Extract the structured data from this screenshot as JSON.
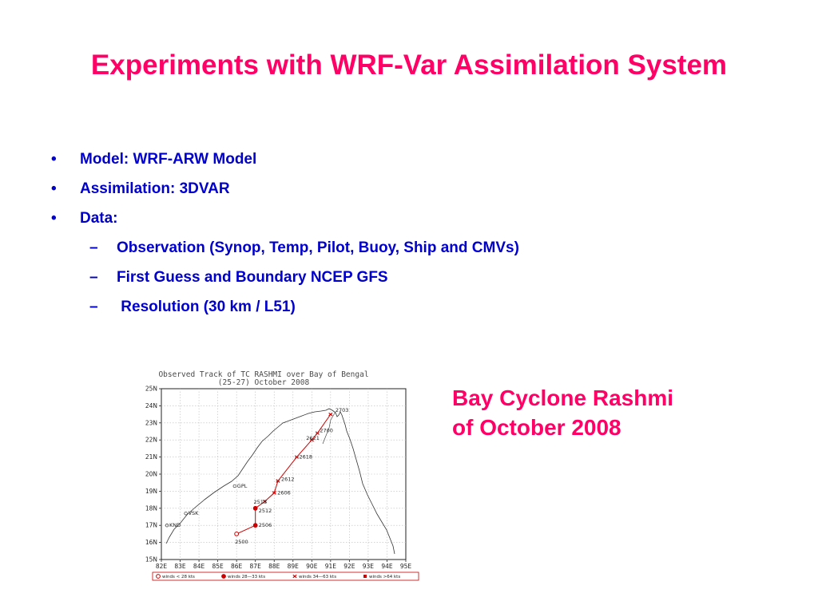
{
  "slide": {
    "title": "Experiments with WRF-Var Assimilation System",
    "bullets": [
      {
        "level": 1,
        "marker": "•",
        "text": "Model: WRF-ARW Model"
      },
      {
        "level": 1,
        "marker": "•",
        "text": "Assimilation: 3DVAR"
      },
      {
        "level": 1,
        "marker": "•",
        "text": "Data:"
      },
      {
        "level": 2,
        "marker": "–",
        "text": "Observation (Synop, Temp, Pilot, Buoy, Ship and CMVs)"
      },
      {
        "level": 2,
        "marker": "–",
        "text": "First Guess and Boundary NCEP GFS"
      },
      {
        "level": 2,
        "marker": "–",
        "text": " Resolution (30 km / L51)"
      }
    ],
    "caption": [
      "Bay Cyclone Rashmi",
      "of October 2008"
    ],
    "colors": {
      "title": "#ff0066",
      "bullets": "#0000cc",
      "track": "#cc0000"
    }
  },
  "map": {
    "title_lines": [
      "Observed Track of TC RASHMI over Bay of Bengal",
      "(25-27) October 2008"
    ],
    "lon_ticks": [
      "82E",
      "83E",
      "84E",
      "85E",
      "86E",
      "87E",
      "88E",
      "89E",
      "90E",
      "91E",
      "92E",
      "93E",
      "94E",
      "95E"
    ],
    "lat_ticks": [
      "25N",
      "24N",
      "23N",
      "22N",
      "21N",
      "20N",
      "19N",
      "18N",
      "17N",
      "16N",
      "15N"
    ],
    "lon_range": [
      82,
      95
    ],
    "lat_range": [
      15,
      25
    ],
    "grid": true,
    "stations": [
      {
        "name": "GPL",
        "lon": 85.9,
        "lat": 19.3
      },
      {
        "name": "VSK",
        "lon": 83.3,
        "lat": 17.7
      },
      {
        "name": "KND",
        "lon": 82.3,
        "lat": 17.0
      }
    ],
    "track": [
      {
        "label": "2500",
        "lon": 86.0,
        "lat": 16.5,
        "category": "lt28"
      },
      {
        "label": "2506",
        "lon": 87.0,
        "lat": 17.0,
        "category": "28-33"
      },
      {
        "label": "2512",
        "lon": 87.0,
        "lat": 18.0,
        "category": "28-33"
      },
      {
        "label": "2518",
        "lon": 87.5,
        "lat": 18.4,
        "category": "34-63"
      },
      {
        "label": "2606",
        "lon": 88.0,
        "lat": 18.9,
        "category": "34-63"
      },
      {
        "label": "2612",
        "lon": 88.2,
        "lat": 19.6,
        "category": "34-63"
      },
      {
        "label": "2618",
        "lon": 89.2,
        "lat": 21.0,
        "category": "34-63"
      },
      {
        "label": "2621",
        "lon": 90.0,
        "lat": 22.0,
        "category": "34-63"
      },
      {
        "label": "2700",
        "lon": 90.3,
        "lat": 22.4,
        "category": "34-63"
      },
      {
        "label": "2703",
        "lon": 91.0,
        "lat": 23.5,
        "category": "34-63"
      }
    ],
    "legend": [
      {
        "key": "lt28",
        "label": "winds < 28 kts"
      },
      {
        "key": "28-33",
        "label": "winds 28—33 kts"
      },
      {
        "key": "34-63",
        "label": "winds 34—63 kts"
      },
      {
        "key": "gt64",
        "label": "winds >64 kts"
      }
    ]
  }
}
